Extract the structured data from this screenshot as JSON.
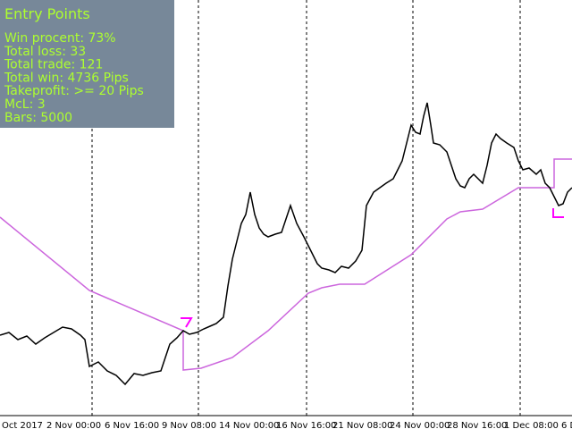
{
  "panel": {
    "title": "Entry Points",
    "lines": [
      "Win procent: 73%",
      "Total loss: 33",
      "Total trade: 121",
      "Total win: 4736 Pips",
      "Takeprofit: >= 20 Pips",
      "McL: 3",
      "Bars: 5000"
    ]
  },
  "time_axis": {
    "labels": [
      "Oct 2017",
      "2 Nov 00:00",
      "6 Nov 16:00",
      "9 Nov 08:00",
      "14 Nov 00:00",
      "16 Nov 16:00",
      "21 Nov 08:00",
      "24 Nov 00:00",
      "28 Nov 16:00",
      "1 Dec 08:00",
      "6 D"
    ]
  }
}
